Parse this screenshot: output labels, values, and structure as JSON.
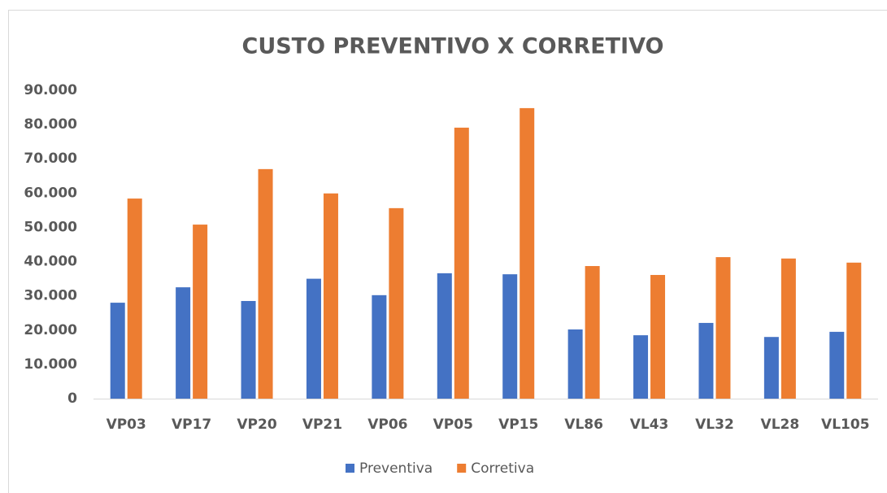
{
  "chart_data": {
    "type": "bar",
    "title": "CUSTO PREVENTIVO X CORRETIVO",
    "categories": [
      "VP03",
      "VP17",
      "VP20",
      "VP21",
      "VP06",
      "VP05",
      "VP15",
      "VL86",
      "VL43",
      "VL32",
      "VL28",
      "VL105"
    ],
    "series": [
      {
        "name": "Preventiva",
        "color": "#4472c4",
        "values": [
          28000,
          32500,
          28500,
          35000,
          30200,
          36600,
          36300,
          20200,
          18500,
          22100,
          18000,
          19500
        ]
      },
      {
        "name": "Corretiva",
        "color": "#ed7d31",
        "values": [
          58400,
          50800,
          67000,
          59900,
          55600,
          79100,
          84800,
          38700,
          36100,
          41300,
          40900,
          39700
        ]
      }
    ],
    "ylim": [
      0,
      90000
    ],
    "yticks": [
      0,
      {
        "value": 10000,
        "label": "10.000"
      },
      {
        "value": 20000,
        "label": "20.000"
      },
      {
        "value": 30000,
        "label": "30.000"
      },
      {
        "value": 40000,
        "label": "40.000"
      },
      {
        "value": 50000,
        "label": "50.000"
      },
      {
        "value": 60000,
        "label": "60.000"
      },
      {
        "value": 70000,
        "label": "70.000"
      },
      {
        "value": 80000,
        "label": "80.000"
      },
      {
        "value": 90000,
        "label": "90.000"
      }
    ],
    "grid": false,
    "legend": "bottom"
  }
}
